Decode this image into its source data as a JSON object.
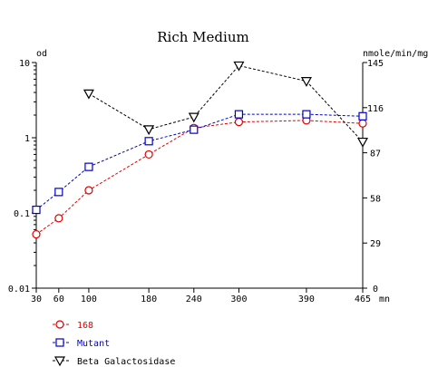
{
  "chart_data": {
    "type": "line",
    "title": "Rich Medium",
    "x_unit": "mn",
    "y_left_label": "od",
    "y_right_label": "nmole/min/mg",
    "x_ticks": [
      30,
      60,
      100,
      180,
      240,
      300,
      390,
      465
    ],
    "x_range": [
      30,
      465
    ],
    "y_left_scale": "log",
    "y_left_range": [
      0.01,
      10
    ],
    "y_left_ticks": [
      "10",
      "1",
      "0.1",
      "0.01"
    ],
    "y_right_range": [
      0,
      145
    ],
    "y_right_ticks": [
      "145",
      "116",
      "87",
      "58",
      "29",
      "0"
    ],
    "grid": false,
    "legend_position": "bottom-left",
    "series": [
      {
        "name": "168",
        "axis": "left",
        "color": "#e00000",
        "marker": "circle",
        "x": [
          30,
          60,
          100,
          180,
          240,
          300,
          390,
          465
        ],
        "values": [
          0.052,
          0.085,
          0.2,
          0.6,
          1.35,
          1.62,
          1.7,
          1.55
        ]
      },
      {
        "name": "Mutant",
        "axis": "left",
        "color": "#0000cc",
        "marker": "square",
        "x": [
          30,
          60,
          100,
          180,
          240,
          300,
          390,
          465
        ],
        "values": [
          0.11,
          0.19,
          0.41,
          0.9,
          1.28,
          2.05,
          2.05,
          1.93
        ]
      },
      {
        "name": "Beta Galactosidase",
        "axis": "right",
        "color": "#000000",
        "marker": "triangle-down",
        "x": [
          100,
          180,
          240,
          300,
          390,
          465
        ],
        "values": [
          125,
          102,
          110,
          143,
          133,
          94
        ]
      }
    ]
  }
}
